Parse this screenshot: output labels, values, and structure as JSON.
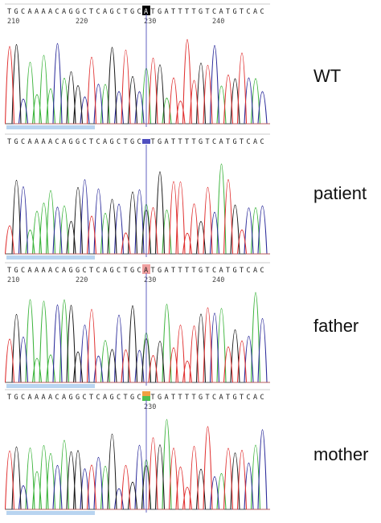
{
  "sequence": "TGCAAAACAGGCTCAGCTGCATGATTTTGTCATGTCAC",
  "colors": {
    "A": "#3cb43c",
    "C": "#2a2a9a",
    "G": "#1a1a1a",
    "T": "#e03030",
    "cursor": "#6060c0",
    "scroll": "#b8d4f0"
  },
  "panels": [
    {
      "label": "WT",
      "position_numbers": [
        "210",
        "220",
        "230",
        "240"
      ],
      "highlight": "black",
      "highlight_base": "A"
    },
    {
      "label": "patient",
      "position_numbers": [],
      "highlight": "blue",
      "highlight_base": ""
    },
    {
      "label": "father",
      "position_numbers": [
        "210",
        "220",
        "230",
        "240"
      ],
      "highlight": "pink",
      "highlight_base": "A"
    },
    {
      "label": "mother",
      "position_numbers": [
        "230"
      ],
      "highlight": "green-orange",
      "highlight_base": ""
    }
  ]
}
